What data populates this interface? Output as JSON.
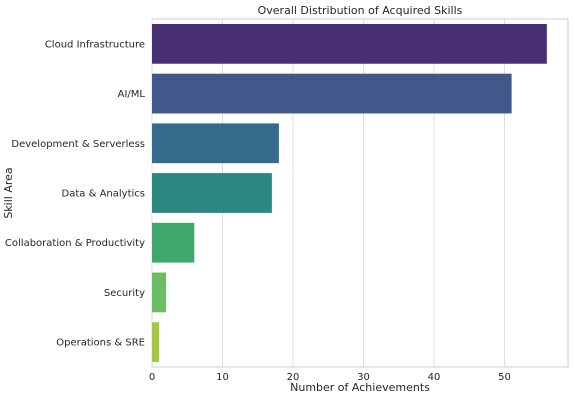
{
  "chart_data": {
    "type": "bar",
    "orientation": "horizontal",
    "title": "Overall Distribution of Acquired Skills",
    "xlabel": "Number of Achievements",
    "ylabel": "Skill Area",
    "xlim": [
      0,
      59
    ],
    "xticks": [
      0,
      10,
      20,
      30,
      40,
      50
    ],
    "grid": true,
    "categories": [
      "Cloud Infrastructure",
      "AI/ML",
      "Development & Serverless",
      "Data & Analytics",
      "Collaboration & Productivity",
      "Security",
      "Operations & SRE"
    ],
    "values": [
      56,
      51,
      18,
      17,
      6,
      2,
      1
    ],
    "colors": [
      "#482f74",
      "#41588b",
      "#346b8d",
      "#2b8782",
      "#3ea86d",
      "#6bbd66",
      "#a4c93b"
    ]
  }
}
